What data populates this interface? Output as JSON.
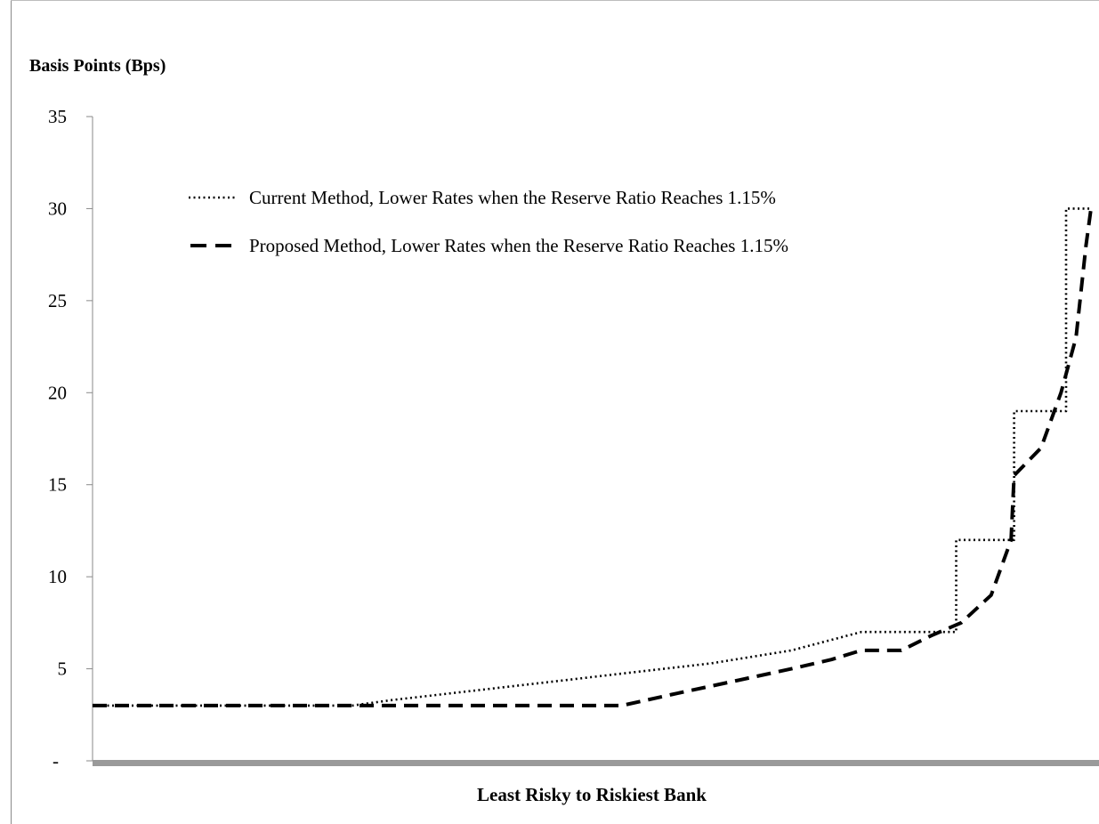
{
  "chart_data": {
    "type": "line",
    "ylabel": "Basis Points (Bps)",
    "xlabel": "Least Risky to Riskiest Bank",
    "ylim": [
      0,
      35
    ],
    "xlim": [
      0,
      100
    ],
    "yticks": [
      {
        "value": 0,
        "label": "-"
      },
      {
        "value": 5,
        "label": "5"
      },
      {
        "value": 10,
        "label": "10"
      },
      {
        "value": 15,
        "label": "15"
      },
      {
        "value": 20,
        "label": "20"
      },
      {
        "value": 25,
        "label": "25"
      },
      {
        "value": 30,
        "label": "30"
      },
      {
        "value": 35,
        "label": "35"
      }
    ],
    "grid": false,
    "legend": "top-left",
    "series": [
      {
        "name": "Current Method, Lower Rates when the Reserve Ratio Reaches 1.15%",
        "style": "dotted",
        "color": "#000000",
        "x": [
          0,
          26,
          30,
          38,
          46,
          54,
          62,
          70,
          77,
          81,
          86.5,
          86.5,
          92.3,
          92.3,
          97.5,
          97.5,
          100
        ],
        "y": [
          3,
          3,
          3.3,
          3.8,
          4.3,
          4.8,
          5.3,
          6.0,
          7.0,
          7.0,
          7.0,
          12.0,
          12.0,
          19.0,
          19.0,
          30.0,
          30.0
        ]
      },
      {
        "name": "Proposed Method, Lower Rates when the Reserve Ratio Reaches 1.15%",
        "style": "dashed",
        "color": "#000000",
        "x": [
          0,
          53,
          58,
          64,
          70,
          74,
          77,
          81,
          84,
          87,
          90,
          92,
          92.3,
          95,
          97,
          98.5,
          99.5,
          100
        ],
        "y": [
          3,
          3,
          3.6,
          4.3,
          5.0,
          5.5,
          6.0,
          6.0,
          6.8,
          7.5,
          9.0,
          12.0,
          15.5,
          17.0,
          20.0,
          23.0,
          28.0,
          30.0
        ]
      }
    ]
  },
  "colors": {
    "axis": "#8a8a8a",
    "baseline": "#9a9a9a",
    "line": "#000000"
  }
}
